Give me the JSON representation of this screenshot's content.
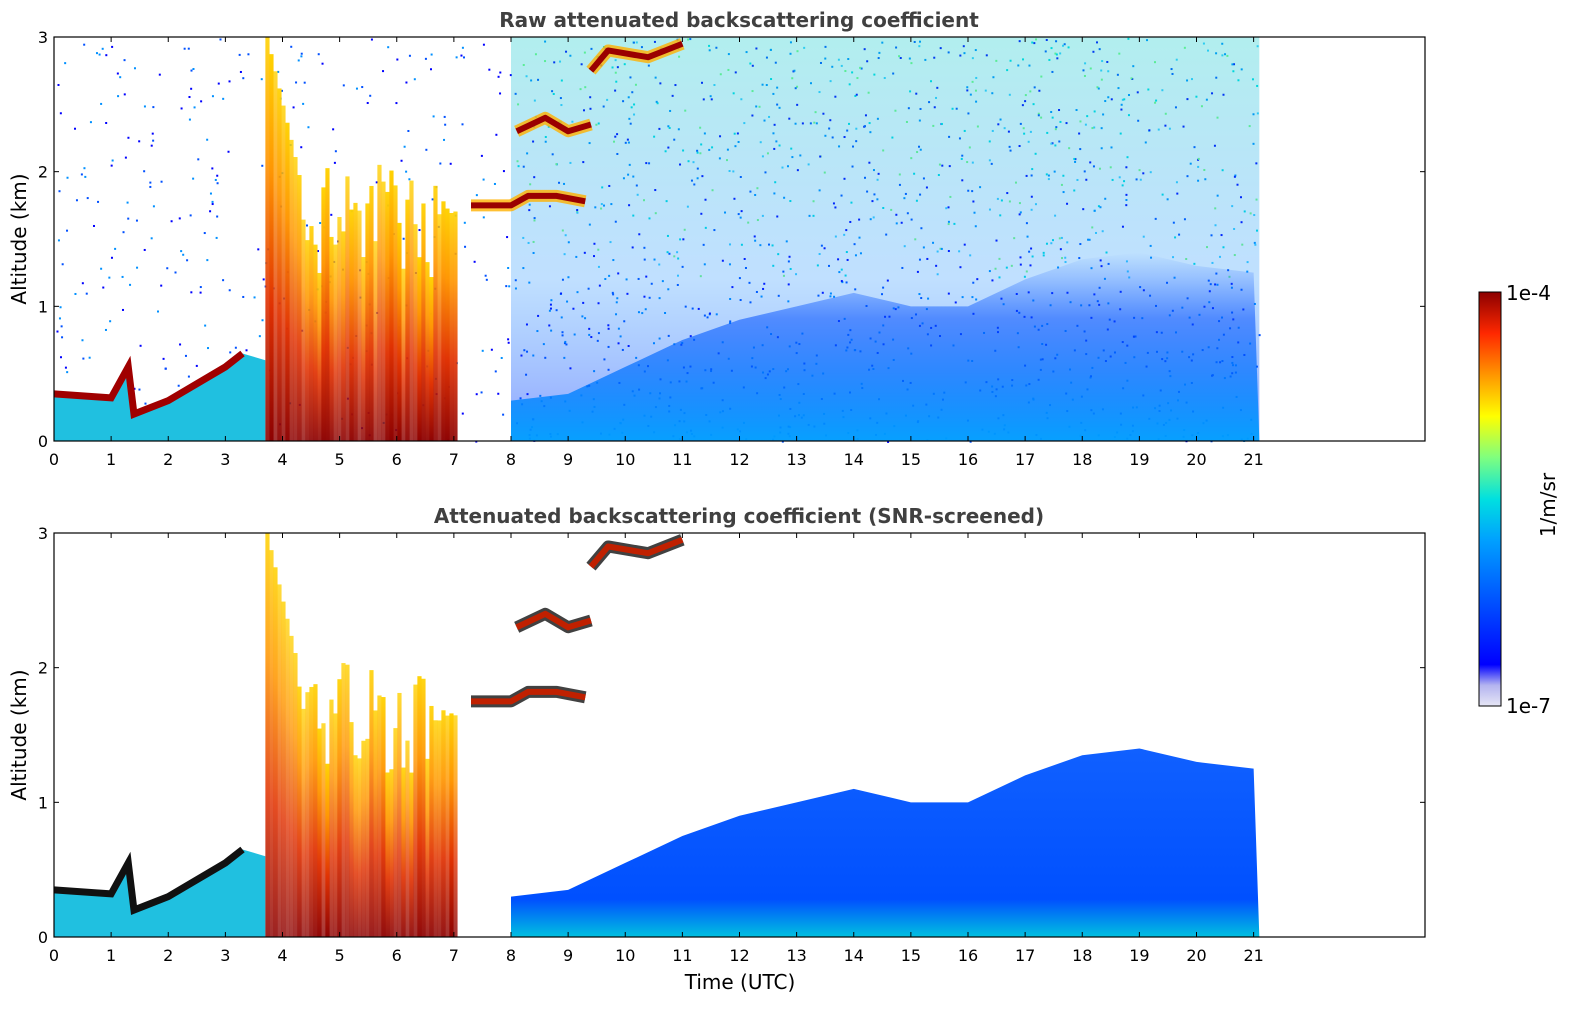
{
  "chart_data": [
    {
      "type": "heatmap",
      "title": "Raw attenuated backscattering coefficient",
      "xlabel": "",
      "ylabel": "Altitude (km)",
      "xlim": [
        0,
        24
      ],
      "ylim": [
        0,
        3
      ],
      "data_extent_x": [
        0,
        21.1
      ],
      "xticks": [
        "0",
        "1",
        "2",
        "3",
        "4",
        "5",
        "6",
        "7",
        "8",
        "9",
        "10",
        "11",
        "12",
        "13",
        "14",
        "15",
        "16",
        "17",
        "18",
        "19",
        "20",
        "21"
      ],
      "yticks": [
        "0",
        "1",
        "2",
        "3"
      ],
      "features": [
        {
          "name": "boundary layer top",
          "points": [
            [
              0,
              0.35
            ],
            [
              1.0,
              0.32
            ],
            [
              1.3,
              0.55
            ],
            [
              1.4,
              0.2
            ],
            [
              2.0,
              0.3
            ],
            [
              3.0,
              0.55
            ],
            [
              3.3,
              0.65
            ]
          ]
        },
        {
          "name": "dense cloud",
          "x_range": [
            3.7,
            7.0
          ],
          "top_km": [
            0.4,
            3.0
          ]
        },
        {
          "name": "cloud layer",
          "points": [
            [
              7.3,
              1.75
            ],
            [
              8.0,
              1.75
            ],
            [
              8.3,
              1.82
            ],
            [
              8.8,
              1.82
            ],
            [
              9.3,
              1.78
            ]
          ]
        },
        {
          "name": "cloud layer",
          "points": [
            [
              8.1,
              2.3
            ],
            [
              8.6,
              2.4
            ],
            [
              9.0,
              2.3
            ],
            [
              9.4,
              2.35
            ]
          ]
        },
        {
          "name": "cloud layer",
          "points": [
            [
              9.4,
              2.75
            ],
            [
              9.7,
              2.9
            ],
            [
              10.4,
              2.85
            ],
            [
              11.0,
              2.95
            ]
          ]
        },
        {
          "name": "aerosol layer top",
          "points": [
            [
              8.0,
              0.3
            ],
            [
              9.0,
              0.35
            ],
            [
              10.0,
              0.55
            ],
            [
              11.0,
              0.75
            ],
            [
              12.0,
              0.9
            ],
            [
              13.0,
              1.0
            ],
            [
              14.0,
              1.1
            ],
            [
              15.0,
              1.0
            ],
            [
              16.0,
              1.0
            ],
            [
              17.0,
              1.2
            ],
            [
              18.0,
              1.35
            ],
            [
              19.0,
              1.4
            ],
            [
              20.0,
              1.3
            ],
            [
              21.0,
              1.25
            ]
          ]
        }
      ]
    },
    {
      "type": "heatmap",
      "title": "Attenuated backscattering coefficient (SNR-screened)",
      "xlabel": "Time (UTC)",
      "ylabel": "Altitude (km)",
      "xlim": [
        0,
        24
      ],
      "ylim": [
        0,
        3
      ],
      "data_extent_x": [
        0,
        21.1
      ],
      "xticks": [
        "0",
        "1",
        "2",
        "3",
        "4",
        "5",
        "6",
        "7",
        "8",
        "9",
        "10",
        "11",
        "12",
        "13",
        "14",
        "15",
        "16",
        "17",
        "18",
        "19",
        "20",
        "21"
      ],
      "yticks": [
        "0",
        "1",
        "2",
        "3"
      ],
      "features": [
        {
          "name": "boundary layer top",
          "points": [
            [
              0,
              0.35
            ],
            [
              1.0,
              0.32
            ],
            [
              1.3,
              0.55
            ],
            [
              1.4,
              0.2
            ],
            [
              2.0,
              0.3
            ],
            [
              3.0,
              0.55
            ],
            [
              3.3,
              0.65
            ]
          ]
        },
        {
          "name": "dense cloud",
          "x_range": [
            3.7,
            7.0
          ],
          "top_km": [
            0.4,
            3.0
          ]
        },
        {
          "name": "cloud layer",
          "points": [
            [
              7.3,
              1.75
            ],
            [
              8.0,
              1.75
            ],
            [
              8.3,
              1.82
            ],
            [
              8.8,
              1.82
            ],
            [
              9.3,
              1.78
            ]
          ]
        },
        {
          "name": "cloud layer",
          "points": [
            [
              8.1,
              2.3
            ],
            [
              8.6,
              2.4
            ],
            [
              9.0,
              2.3
            ],
            [
              9.4,
              2.35
            ]
          ]
        },
        {
          "name": "cloud layer",
          "points": [
            [
              9.4,
              2.75
            ],
            [
              9.7,
              2.9
            ],
            [
              10.4,
              2.85
            ],
            [
              11.0,
              2.95
            ]
          ]
        },
        {
          "name": "aerosol layer top",
          "points": [
            [
              8.0,
              0.3
            ],
            [
              9.0,
              0.35
            ],
            [
              10.0,
              0.55
            ],
            [
              11.0,
              0.75
            ],
            [
              12.0,
              0.9
            ],
            [
              13.0,
              1.0
            ],
            [
              14.0,
              1.1
            ],
            [
              15.0,
              1.0
            ],
            [
              16.0,
              1.0
            ],
            [
              17.0,
              1.2
            ],
            [
              18.0,
              1.35
            ],
            [
              19.0,
              1.4
            ],
            [
              20.0,
              1.3
            ],
            [
              21.0,
              1.25
            ]
          ]
        }
      ]
    }
  ],
  "colorbar": {
    "label": "1/m/sr",
    "max_label": "1e-4",
    "min_label": "1e-7",
    "scale": "log",
    "colormap": [
      "#e6e6f5",
      "#b4b4f0",
      "#0000ff",
      "#0050ff",
      "#00a0ff",
      "#00e0e0",
      "#7fff7f",
      "#ffff00",
      "#ff9600",
      "#ff2800",
      "#8c0000"
    ]
  }
}
